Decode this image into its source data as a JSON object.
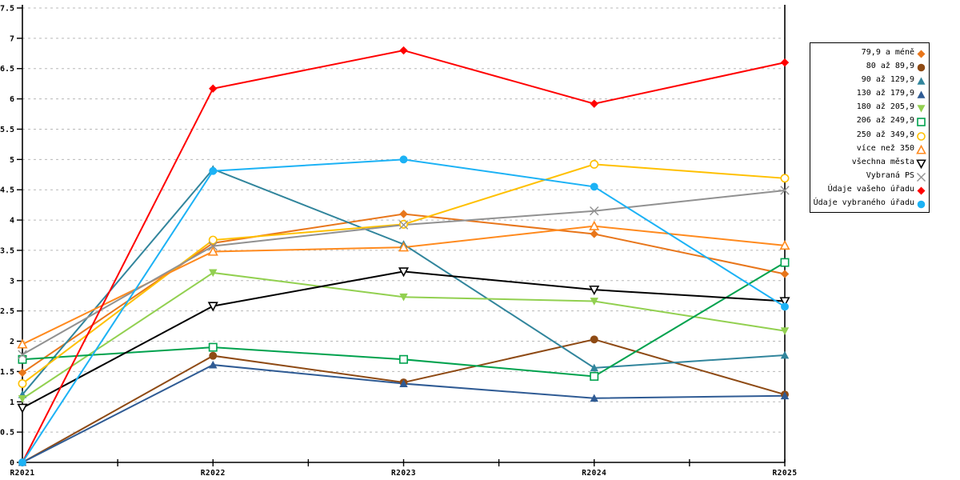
{
  "chart_data": {
    "type": "line",
    "title": "",
    "xlabel": "",
    "ylabel": "",
    "x_categories": [
      "R2021",
      "R2022",
      "R2023",
      "R2024",
      "R2025"
    ],
    "ylim": [
      0,
      7.5
    ],
    "y_tick_step": 0.5,
    "y_tick_labels": [
      "0",
      "0.5",
      "1",
      "1.5",
      "2",
      "2.5",
      "3",
      "3.5",
      "4",
      "4.5",
      "5",
      "5.5",
      "6",
      "6.5",
      "7",
      "7.5"
    ],
    "grid": "horizontal-dashed",
    "grid_color": "#b8b8b8",
    "axis_color": "#000000",
    "legend_position": "right",
    "series": [
      {
        "name": "79,9 a méně",
        "color": "#E8761B",
        "marker": "diamond-filled",
        "values": [
          1.48,
          3.62,
          4.1,
          3.77,
          3.11
        ]
      },
      {
        "name": "80 až 89,9",
        "color": "#8E4A14",
        "marker": "circle-filled",
        "values": [
          0.0,
          1.76,
          1.32,
          2.03,
          1.12
        ]
      },
      {
        "name": "90 až 129,9",
        "color": "#31859C",
        "marker": "triangle-up-filled",
        "values": [
          1.12,
          4.84,
          3.6,
          1.56,
          1.77
        ]
      },
      {
        "name": "130 až 179,9",
        "color": "#2F5B94",
        "marker": "triangle-up-filled",
        "values": [
          0.0,
          1.61,
          1.3,
          1.06,
          1.1
        ]
      },
      {
        "name": "180 až 205,9",
        "color": "#92D050",
        "marker": "triangle-down-filled",
        "values": [
          1.05,
          3.13,
          2.73,
          2.66,
          2.17
        ]
      },
      {
        "name": "206 až 249,9",
        "color": "#00A24E",
        "marker": "square-open",
        "values": [
          1.7,
          1.9,
          1.7,
          1.42,
          3.3
        ]
      },
      {
        "name": "250 až 349,9",
        "color": "#FFC000",
        "marker": "circle-open",
        "values": [
          1.3,
          3.67,
          3.93,
          4.92,
          4.69
        ]
      },
      {
        "name": "více než 350",
        "color": "#FF8A1E",
        "marker": "triangle-up-open",
        "values": [
          1.95,
          3.48,
          3.55,
          3.9,
          3.58
        ]
      },
      {
        "name": "všechna města",
        "color": "#000000",
        "marker": "triangle-down-open",
        "values": [
          0.9,
          2.58,
          3.15,
          2.85,
          2.66
        ]
      },
      {
        "name": "Vybraná PS",
        "color": "#919191",
        "marker": "x",
        "values": [
          1.78,
          3.57,
          3.92,
          4.15,
          4.49
        ]
      },
      {
        "name": "Údaje vašeho úřadu",
        "color": "#FF0000",
        "marker": "diamond-filled",
        "values": [
          0.0,
          6.17,
          6.8,
          5.92,
          6.6
        ]
      },
      {
        "name": "Údaje vybraného úřadu",
        "color": "#1CB2F5",
        "marker": "circle-filled",
        "values": [
          0.0,
          4.81,
          5.0,
          4.55,
          2.57
        ]
      }
    ]
  }
}
